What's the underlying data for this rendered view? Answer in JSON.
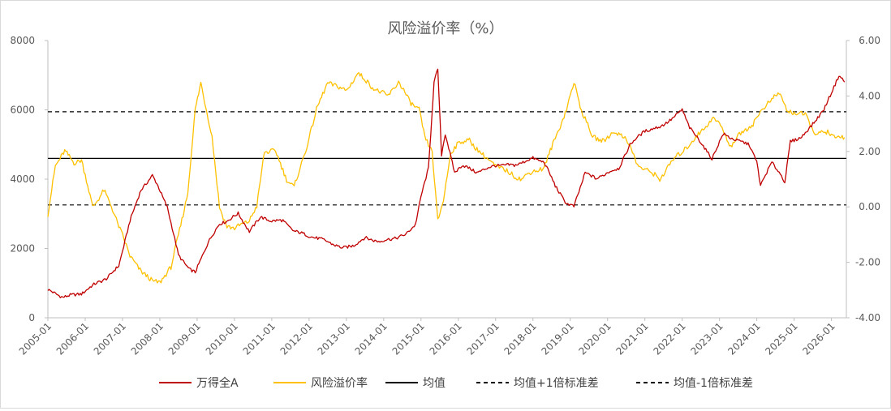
{
  "chart_data": {
    "type": "line",
    "title": "风险溢价率（%）",
    "x_labels": [
      "2005-01",
      "2006-01",
      "2007-01",
      "2008-01",
      "2009-01",
      "2010-01",
      "2011-01",
      "2012-01",
      "2013-01",
      "2014-01",
      "2015-01",
      "2016-01",
      "2017-01",
      "2018-01",
      "2019-01",
      "2020-01",
      "2021-01",
      "2022-01",
      "2023-01",
      "2024-01",
      "2025-01",
      "2026-01"
    ],
    "x_range": [
      2005.0,
      2026.4
    ],
    "y_left": {
      "ticks": [
        "0",
        "2000",
        "4000",
        "6000",
        "8000"
      ],
      "ylim": [
        0,
        8000
      ]
    },
    "y_right": {
      "ticks": [
        "-4.00",
        "-2.00",
        "0.00",
        "2.00",
        "4.00",
        "6.00"
      ],
      "ylim": [
        -4,
        6
      ]
    },
    "series": [
      {
        "name": "万得全A",
        "axis": "left",
        "color": "#c00000",
        "x": [
          2005.0,
          2005.4,
          2005.9,
          2006.3,
          2006.6,
          2006.9,
          2007.2,
          2007.5,
          2007.8,
          2007.95,
          2008.2,
          2008.5,
          2008.8,
          2008.95,
          2009.3,
          2009.6,
          2009.8,
          2010.1,
          2010.4,
          2010.7,
          2011.0,
          2011.3,
          2011.6,
          2011.9,
          2012.2,
          2012.5,
          2012.9,
          2013.2,
          2013.5,
          2013.9,
          2014.3,
          2014.6,
          2014.85,
          2015.0,
          2015.2,
          2015.35,
          2015.45,
          2015.55,
          2015.65,
          2015.9,
          2016.1,
          2016.5,
          2017.0,
          2017.5,
          2018.0,
          2018.3,
          2018.6,
          2018.9,
          2019.1,
          2019.4,
          2019.7,
          2020.0,
          2020.3,
          2020.6,
          2021.0,
          2021.4,
          2021.8,
          2022.0,
          2022.2,
          2022.4,
          2022.8,
          2023.1,
          2023.5,
          2023.8,
          2024.0,
          2024.1,
          2024.4,
          2024.6,
          2024.75,
          2024.9,
          2025.2,
          2025.5,
          2025.8,
          2026.0,
          2026.2,
          2026.35
        ],
        "y": [
          800,
          600,
          700,
          1000,
          1150,
          1500,
          2800,
          3700,
          4100,
          3800,
          3200,
          1800,
          1400,
          1300,
          2200,
          2700,
          2800,
          3000,
          2500,
          2900,
          2800,
          2800,
          2500,
          2400,
          2300,
          2200,
          2000,
          2100,
          2300,
          2200,
          2300,
          2400,
          2700,
          3500,
          4300,
          6800,
          7200,
          4700,
          5300,
          4200,
          4400,
          4200,
          4400,
          4400,
          4600,
          4500,
          3800,
          3300,
          3200,
          4200,
          4000,
          4200,
          4300,
          5000,
          5400,
          5500,
          5800,
          6000,
          5500,
          5200,
          4600,
          5300,
          5100,
          5000,
          4500,
          3800,
          4500,
          4200,
          3900,
          5100,
          5200,
          5600,
          6000,
          6500,
          7000,
          6800
        ]
      },
      {
        "name": "风险溢价率",
        "axis": "right",
        "color": "#ffc000",
        "x": [
          2005.0,
          2005.2,
          2005.45,
          2005.7,
          2005.9,
          2006.2,
          2006.5,
          2006.7,
          2007.0,
          2007.2,
          2007.5,
          2007.8,
          2008.0,
          2008.3,
          2008.5,
          2008.75,
          2008.95,
          2009.1,
          2009.4,
          2009.6,
          2009.8,
          2010.0,
          2010.2,
          2010.4,
          2010.6,
          2010.8,
          2011.1,
          2011.4,
          2011.6,
          2011.9,
          2012.2,
          2012.5,
          2012.8,
          2013.0,
          2013.3,
          2013.5,
          2013.8,
          2014.1,
          2014.4,
          2014.7,
          2014.95,
          2015.1,
          2015.3,
          2015.45,
          2015.6,
          2015.8,
          2016.0,
          2016.3,
          2016.7,
          2017.0,
          2017.4,
          2017.7,
          2018.0,
          2018.3,
          2018.6,
          2018.9,
          2019.1,
          2019.3,
          2019.6,
          2019.9,
          2020.2,
          2020.5,
          2020.8,
          2021.1,
          2021.4,
          2021.7,
          2022.0,
          2022.3,
          2022.5,
          2022.8,
          2023.0,
          2023.3,
          2023.6,
          2023.9,
          2024.2,
          2024.4,
          2024.6,
          2024.8,
          2025.0,
          2025.3,
          2025.6,
          2025.9,
          2026.1,
          2026.35
        ],
        "y": [
          -0.3,
          1.5,
          2.0,
          1.6,
          1.7,
          0.0,
          0.6,
          0.0,
          -1.0,
          -1.8,
          -2.3,
          -2.7,
          -2.7,
          -2.2,
          -1.0,
          0.5,
          3.5,
          4.5,
          2.5,
          0.0,
          -0.7,
          -0.8,
          -0.6,
          -0.5,
          0.0,
          2.0,
          2.0,
          1.0,
          0.7,
          2.0,
          3.5,
          4.5,
          4.3,
          4.2,
          4.8,
          4.6,
          4.2,
          4.0,
          4.5,
          3.8,
          3.5,
          2.5,
          2.0,
          -0.5,
          0.2,
          2.0,
          2.3,
          2.4,
          1.8,
          1.5,
          1.2,
          1.0,
          1.3,
          1.4,
          2.5,
          3.5,
          4.5,
          3.5,
          2.5,
          2.4,
          2.7,
          2.5,
          1.5,
          1.3,
          1.0,
          1.6,
          2.0,
          2.4,
          2.7,
          3.2,
          3.0,
          2.2,
          2.7,
          3.0,
          3.6,
          3.9,
          4.1,
          3.5,
          3.4,
          3.3,
          2.6,
          2.7,
          2.5,
          2.5
        ]
      }
    ],
    "mean": 1.75,
    "mean_plus_1sd": 3.43,
    "mean_minus_1sd": 0.07,
    "legend": [
      {
        "label": "万得全A",
        "style": "solid",
        "color": "#c00000"
      },
      {
        "label": "风险溢价率",
        "style": "solid",
        "color": "#ffc000"
      },
      {
        "label": "均值",
        "style": "solid",
        "color": "#000000"
      },
      {
        "label": "均值+1倍标准差",
        "style": "dashed",
        "color": "#000000"
      },
      {
        "label": "均值-1倍标准差",
        "style": "dashed",
        "color": "#000000"
      }
    ],
    "legend_position": "bottom",
    "grid": false
  }
}
